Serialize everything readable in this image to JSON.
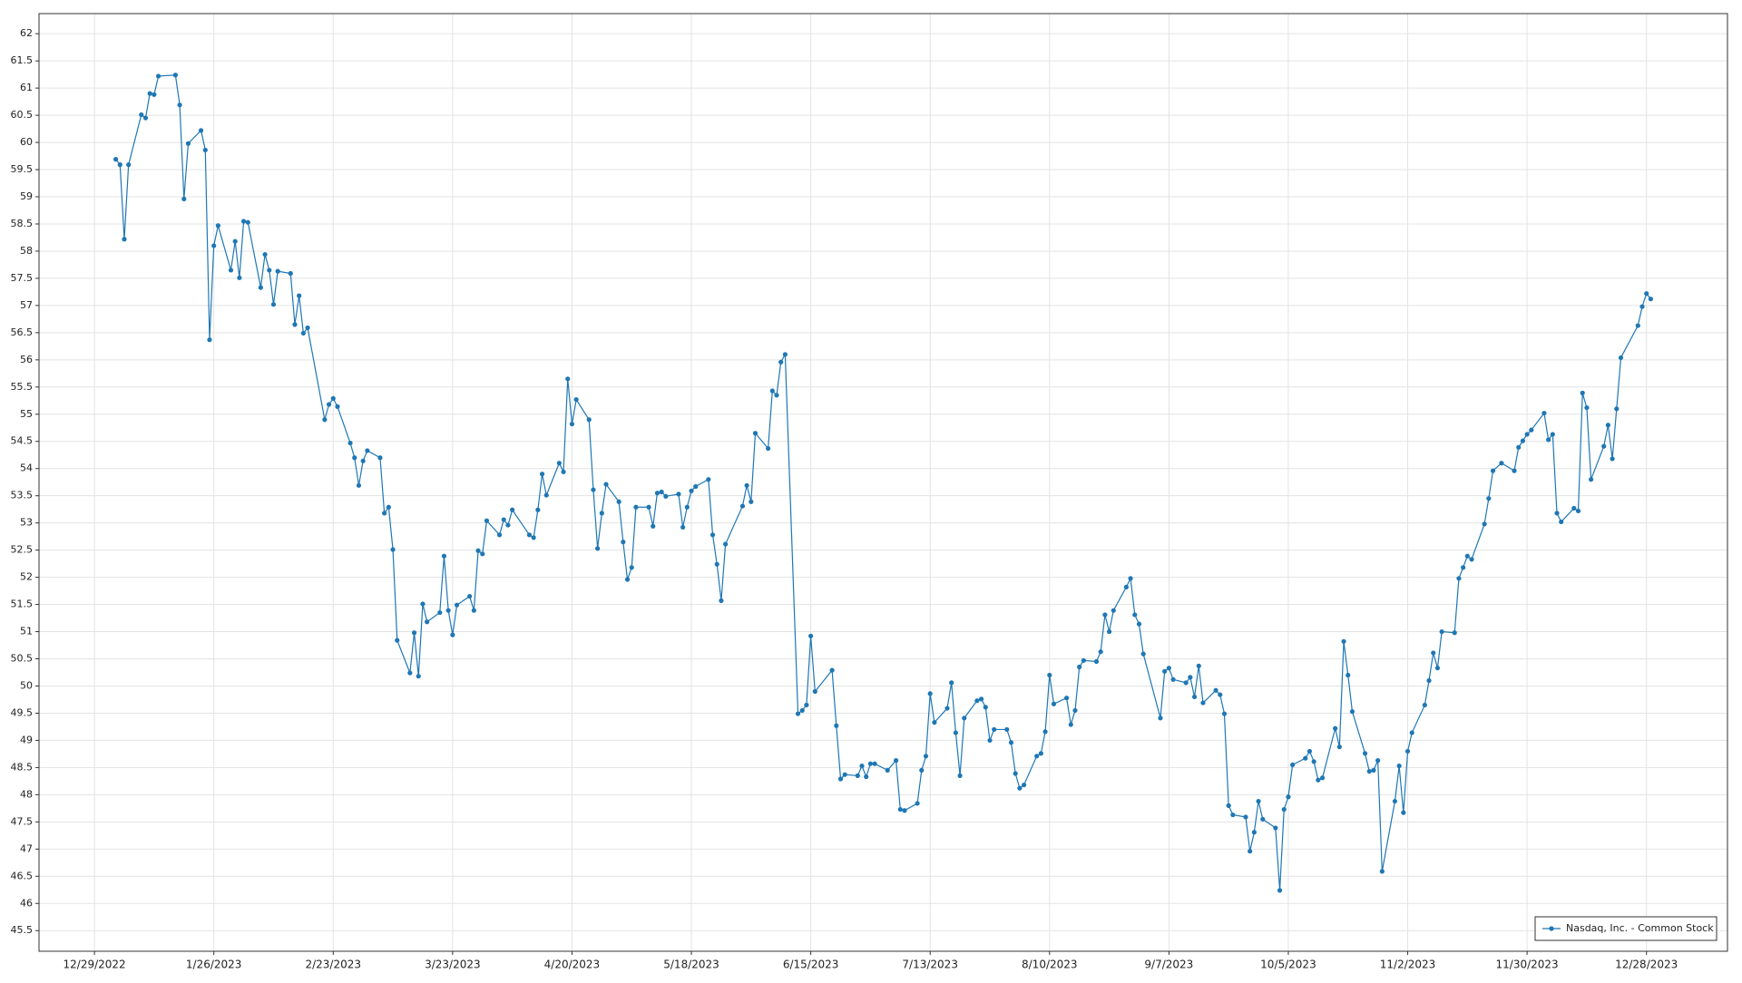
{
  "chart_data": {
    "type": "line",
    "grid": true,
    "legend": "lower right",
    "xlim": [
      "2022-12-16",
      "2024-01-16"
    ],
    "ylim": [
      45.12,
      62.37
    ],
    "xticks": [
      {
        "value": "2022-12-29",
        "label": "12/29/2022"
      },
      {
        "value": "2023-01-26",
        "label": "1/26/2023"
      },
      {
        "value": "2023-02-23",
        "label": "2/23/2023"
      },
      {
        "value": "2023-03-23",
        "label": "3/23/2023"
      },
      {
        "value": "2023-04-20",
        "label": "4/20/2023"
      },
      {
        "value": "2023-05-18",
        "label": "5/18/2023"
      },
      {
        "value": "2023-06-15",
        "label": "6/15/2023"
      },
      {
        "value": "2023-07-13",
        "label": "7/13/2023"
      },
      {
        "value": "2023-08-10",
        "label": "8/10/2023"
      },
      {
        "value": "2023-09-07",
        "label": "9/7/2023"
      },
      {
        "value": "2023-10-05",
        "label": "10/5/2023"
      },
      {
        "value": "2023-11-02",
        "label": "11/2/2023"
      },
      {
        "value": "2023-11-30",
        "label": "11/30/2023"
      },
      {
        "value": "2023-12-28",
        "label": "12/28/2023"
      }
    ],
    "yticks": [
      45.5,
      46,
      46.5,
      47,
      47.5,
      48,
      48.5,
      49,
      49.5,
      50,
      50.5,
      51,
      51.5,
      52,
      52.5,
      53,
      53.5,
      54,
      54.5,
      55,
      55.5,
      56,
      56.5,
      57,
      57.5,
      58,
      58.5,
      59,
      59.5,
      60,
      60.5,
      61,
      61.5,
      62
    ],
    "x": [
      "2023-01-03",
      "2023-01-04",
      "2023-01-05",
      "2023-01-06",
      "2023-01-09",
      "2023-01-10",
      "2023-01-11",
      "2023-01-12",
      "2023-01-13",
      "2023-01-17",
      "2023-01-18",
      "2023-01-19",
      "2023-01-20",
      "2023-01-23",
      "2023-01-24",
      "2023-01-25",
      "2023-01-26",
      "2023-01-27",
      "2023-01-30",
      "2023-01-31",
      "2023-02-01",
      "2023-02-02",
      "2023-02-03",
      "2023-02-06",
      "2023-02-07",
      "2023-02-08",
      "2023-02-09",
      "2023-02-10",
      "2023-02-13",
      "2023-02-14",
      "2023-02-15",
      "2023-02-16",
      "2023-02-17",
      "2023-02-21",
      "2023-02-22",
      "2023-02-23",
      "2023-02-24",
      "2023-02-27",
      "2023-02-28",
      "2023-03-01",
      "2023-03-02",
      "2023-03-03",
      "2023-03-06",
      "2023-03-07",
      "2023-03-08",
      "2023-03-09",
      "2023-03-10",
      "2023-03-13",
      "2023-03-14",
      "2023-03-15",
      "2023-03-16",
      "2023-03-17",
      "2023-03-20",
      "2023-03-21",
      "2023-03-22",
      "2023-03-23",
      "2023-03-24",
      "2023-03-27",
      "2023-03-28",
      "2023-03-29",
      "2023-03-30",
      "2023-03-31",
      "2023-04-03",
      "2023-04-04",
      "2023-04-05",
      "2023-04-06",
      "2023-04-10",
      "2023-04-11",
      "2023-04-12",
      "2023-04-13",
      "2023-04-14",
      "2023-04-17",
      "2023-04-18",
      "2023-04-19",
      "2023-04-20",
      "2023-04-21",
      "2023-04-24",
      "2023-04-25",
      "2023-04-26",
      "2023-04-27",
      "2023-04-28",
      "2023-05-01",
      "2023-05-02",
      "2023-05-03",
      "2023-05-04",
      "2023-05-05",
      "2023-05-08",
      "2023-05-09",
      "2023-05-10",
      "2023-05-11",
      "2023-05-12",
      "2023-05-15",
      "2023-05-16",
      "2023-05-17",
      "2023-05-18",
      "2023-05-19",
      "2023-05-22",
      "2023-05-23",
      "2023-05-24",
      "2023-05-25",
      "2023-05-26",
      "2023-05-30",
      "2023-05-31",
      "2023-06-01",
      "2023-06-02",
      "2023-06-05",
      "2023-06-06",
      "2023-06-07",
      "2023-06-08",
      "2023-06-09",
      "2023-06-12",
      "2023-06-13",
      "2023-06-14",
      "2023-06-15",
      "2023-06-16",
      "2023-06-20",
      "2023-06-21",
      "2023-06-22",
      "2023-06-23",
      "2023-06-26",
      "2023-06-27",
      "2023-06-28",
      "2023-06-29",
      "2023-06-30",
      "2023-07-03",
      "2023-07-05",
      "2023-07-06",
      "2023-07-07",
      "2023-07-10",
      "2023-07-11",
      "2023-07-12",
      "2023-07-13",
      "2023-07-14",
      "2023-07-17",
      "2023-07-18",
      "2023-07-19",
      "2023-07-20",
      "2023-07-21",
      "2023-07-24",
      "2023-07-25",
      "2023-07-26",
      "2023-07-27",
      "2023-07-28",
      "2023-07-31",
      "2023-08-01",
      "2023-08-02",
      "2023-08-03",
      "2023-08-04",
      "2023-08-07",
      "2023-08-08",
      "2023-08-09",
      "2023-08-10",
      "2023-08-11",
      "2023-08-14",
      "2023-08-15",
      "2023-08-16",
      "2023-08-17",
      "2023-08-18",
      "2023-08-21",
      "2023-08-22",
      "2023-08-23",
      "2023-08-24",
      "2023-08-25",
      "2023-08-28",
      "2023-08-29",
      "2023-08-30",
      "2023-08-31",
      "2023-09-01",
      "2023-09-05",
      "2023-09-06",
      "2023-09-07",
      "2023-09-08",
      "2023-09-11",
      "2023-09-12",
      "2023-09-13",
      "2023-09-14",
      "2023-09-15",
      "2023-09-18",
      "2023-09-19",
      "2023-09-20",
      "2023-09-21",
      "2023-09-22",
      "2023-09-25",
      "2023-09-26",
      "2023-09-27",
      "2023-09-28",
      "2023-09-29",
      "2023-10-02",
      "2023-10-03",
      "2023-10-04",
      "2023-10-05",
      "2023-10-06",
      "2023-10-09",
      "2023-10-10",
      "2023-10-11",
      "2023-10-12",
      "2023-10-13",
      "2023-10-16",
      "2023-10-17",
      "2023-10-18",
      "2023-10-19",
      "2023-10-20",
      "2023-10-23",
      "2023-10-24",
      "2023-10-25",
      "2023-10-26",
      "2023-10-27",
      "2023-10-30",
      "2023-10-31",
      "2023-11-01",
      "2023-11-02",
      "2023-11-03",
      "2023-11-06",
      "2023-11-07",
      "2023-11-08",
      "2023-11-09",
      "2023-11-10",
      "2023-11-13",
      "2023-11-14",
      "2023-11-15",
      "2023-11-16",
      "2023-11-17",
      "2023-11-20",
      "2023-11-21",
      "2023-11-22",
      "2023-11-24",
      "2023-11-27",
      "2023-11-28",
      "2023-11-29",
      "2023-11-30",
      "2023-12-01",
      "2023-12-04",
      "2023-12-05",
      "2023-12-06",
      "2023-12-07",
      "2023-12-08",
      "2023-12-11",
      "2023-12-12",
      "2023-12-13",
      "2023-12-14",
      "2023-12-15",
      "2023-12-18",
      "2023-12-19",
      "2023-12-20",
      "2023-12-21",
      "2023-12-22",
      "2023-12-26",
      "2023-12-27",
      "2023-12-28",
      "2023-12-29"
    ],
    "series": [
      {
        "name": "Nasdaq, Inc. - Common Stock",
        "color": "#1f77b4",
        "values": [
          59.69,
          59.59,
          58.22,
          59.59,
          60.51,
          60.45,
          60.9,
          60.88,
          61.22,
          61.24,
          60.69,
          58.96,
          59.98,
          60.22,
          59.86,
          56.37,
          58.1,
          58.47,
          57.65,
          58.18,
          57.51,
          58.55,
          58.53,
          57.33,
          57.94,
          57.65,
          57.02,
          57.63,
          57.59,
          56.65,
          57.18,
          56.49,
          56.59,
          54.9,
          55.18,
          55.29,
          55.14,
          54.47,
          54.2,
          53.69,
          54.14,
          54.33,
          54.2,
          53.18,
          53.29,
          52.51,
          50.84,
          50.24,
          50.98,
          50.18,
          51.51,
          51.18,
          51.35,
          52.39,
          51.39,
          50.94,
          51.49,
          51.65,
          51.39,
          52.49,
          52.43,
          53.04,
          52.78,
          53.06,
          52.96,
          53.24,
          52.78,
          52.73,
          53.24,
          53.9,
          53.51,
          54.1,
          53.94,
          55.65,
          54.82,
          55.27,
          54.9,
          53.61,
          52.53,
          53.18,
          53.71,
          53.39,
          52.65,
          51.96,
          52.18,
          53.29,
          53.29,
          52.94,
          53.55,
          53.57,
          53.49,
          53.53,
          52.92,
          53.29,
          53.59,
          53.67,
          53.8,
          52.78,
          52.24,
          51.57,
          52.61,
          53.31,
          53.69,
          53.39,
          54.65,
          54.37,
          55.43,
          55.35,
          55.96,
          56.1,
          49.49,
          49.55,
          49.65,
          50.92,
          49.9,
          50.29,
          49.27,
          48.29,
          48.37,
          48.35,
          48.53,
          48.33,
          48.57,
          48.57,
          48.45,
          48.63,
          47.73,
          47.71,
          47.84,
          48.45,
          48.71,
          49.86,
          49.33,
          49.59,
          50.06,
          49.14,
          48.35,
          49.41,
          49.73,
          49.76,
          49.61,
          49.0,
          49.2,
          49.2,
          48.96,
          48.39,
          48.12,
          48.18,
          48.71,
          48.76,
          49.16,
          50.2,
          49.67,
          49.78,
          49.29,
          49.55,
          50.35,
          50.47,
          50.45,
          50.63,
          51.31,
          51.0,
          51.39,
          51.82,
          51.98,
          51.31,
          51.14,
          50.59,
          49.41,
          50.27,
          50.33,
          50.12,
          50.06,
          50.16,
          49.8,
          50.37,
          49.69,
          49.92,
          49.84,
          49.49,
          47.8,
          47.63,
          47.59,
          46.96,
          47.31,
          47.88,
          47.55,
          47.39,
          46.24,
          47.73,
          47.96,
          48.55,
          48.67,
          48.8,
          48.61,
          48.27,
          48.31,
          49.22,
          48.88,
          50.82,
          50.2,
          49.53,
          48.76,
          48.43,
          48.45,
          48.63,
          46.59,
          47.88,
          48.53,
          47.67,
          48.8,
          49.14,
          49.65,
          50.1,
          50.61,
          50.33,
          51.0,
          50.98,
          51.98,
          52.18,
          52.39,
          52.33,
          52.98,
          53.45,
          53.96,
          54.1,
          53.96,
          54.39,
          54.51,
          54.63,
          54.71,
          55.02,
          54.53,
          54.63,
          53.18,
          53.02,
          53.27,
          53.22,
          55.39,
          55.12,
          53.8,
          54.41,
          54.8,
          54.18,
          55.1,
          56.04,
          56.63,
          56.98,
          57.22,
          57.12
        ]
      }
    ]
  }
}
